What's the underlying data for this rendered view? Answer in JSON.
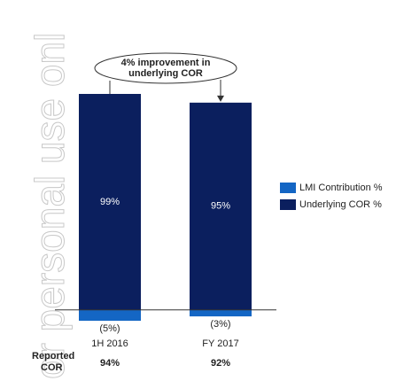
{
  "watermark": "or personal use onl",
  "chart_data": {
    "type": "bar",
    "stacked": true,
    "annotation": "4% improvement in underlying COR",
    "categories": [
      "1H 2016",
      "FY 2017"
    ],
    "series": [
      {
        "name": "Underlying COR %",
        "color": "#0b1f5e",
        "values": [
          99,
          95
        ],
        "value_labels": [
          "99%",
          "95%"
        ]
      },
      {
        "name": "LMI Contribution %",
        "color": "#1466c4",
        "values": [
          -5,
          -3
        ],
        "value_labels": [
          "(5%)",
          "(3%)"
        ]
      }
    ],
    "reported_cor": {
      "label": "Reported COR",
      "values": [
        94,
        92
      ],
      "value_labels": [
        "94%",
        "92%"
      ]
    },
    "legend": "right"
  }
}
